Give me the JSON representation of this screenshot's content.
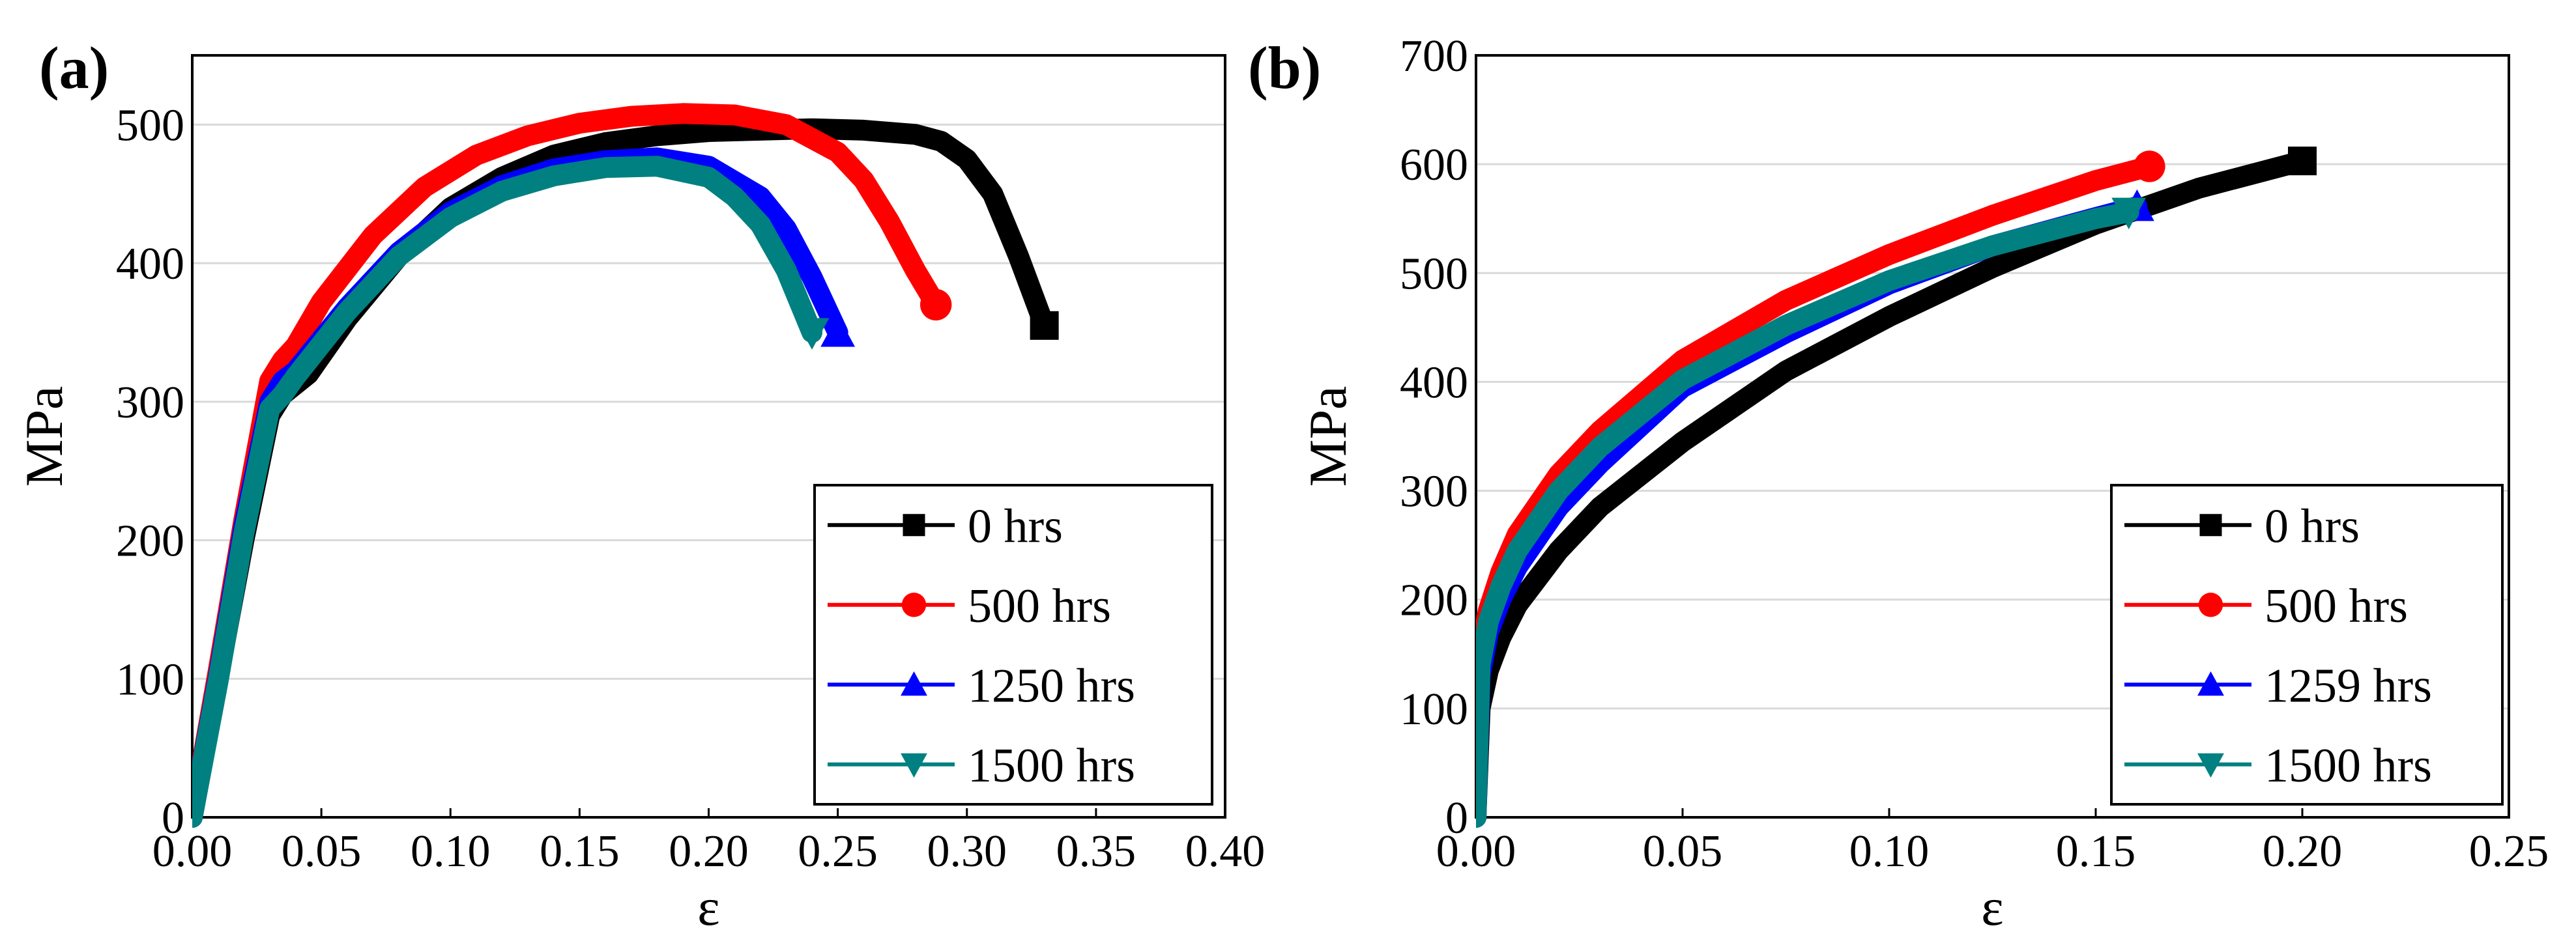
{
  "chart_data": [
    {
      "panel": "(a)",
      "type": "line",
      "xlabel": "ε",
      "ylabel": "MPa",
      "xlim": [
        0.0,
        0.4
      ],
      "ylim": [
        0,
        550
      ],
      "x_ticks": [
        "0.00",
        "0.05",
        "0.10",
        "0.15",
        "0.20",
        "0.25",
        "0.30",
        "0.35",
        "0.40"
      ],
      "y_ticks": [
        "0",
        "100",
        "200",
        "300",
        "400",
        "500"
      ],
      "grid": "horizontal",
      "legend_position": "bottom-right",
      "series": [
        {
          "name": "0 hrs",
          "color": "#000000",
          "marker": "square",
          "x": [
            0.0,
            0.01,
            0.02,
            0.03,
            0.035,
            0.045,
            0.06,
            0.08,
            0.1,
            0.12,
            0.14,
            0.16,
            0.18,
            0.2,
            0.22,
            0.24,
            0.26,
            0.28,
            0.29,
            0.3,
            0.31,
            0.32,
            0.33
          ],
          "y": [
            0,
            100,
            200,
            290,
            305,
            320,
            360,
            405,
            440,
            462,
            478,
            487,
            492,
            495,
            496,
            497,
            496,
            493,
            488,
            475,
            450,
            405,
            355
          ]
        },
        {
          "name": "500 hrs",
          "color": "#ff0000",
          "marker": "circle",
          "x": [
            0.0,
            0.01,
            0.02,
            0.03,
            0.035,
            0.04,
            0.05,
            0.07,
            0.09,
            0.11,
            0.13,
            0.15,
            0.17,
            0.19,
            0.21,
            0.23,
            0.25,
            0.26,
            0.27,
            0.28,
            0.288
          ],
          "y": [
            0,
            105,
            215,
            315,
            330,
            340,
            372,
            420,
            455,
            478,
            492,
            501,
            506,
            508,
            507,
            500,
            480,
            460,
            430,
            395,
            370
          ]
        },
        {
          "name": "1250 hrs",
          "color": "#0000ff",
          "marker": "triangle-up",
          "x": [
            0.0,
            0.01,
            0.02,
            0.03,
            0.035,
            0.04,
            0.06,
            0.08,
            0.1,
            0.12,
            0.14,
            0.16,
            0.18,
            0.2,
            0.22,
            0.23,
            0.24,
            0.25
          ],
          "y": [
            0,
            100,
            210,
            300,
            315,
            322,
            368,
            408,
            437,
            456,
            468,
            474,
            476,
            470,
            448,
            425,
            390,
            350
          ]
        },
        {
          "name": "1500 hrs",
          "color": "#008080",
          "marker": "triangle-down",
          "x": [
            0.0,
            0.01,
            0.02,
            0.03,
            0.035,
            0.04,
            0.06,
            0.08,
            0.1,
            0.12,
            0.14,
            0.16,
            0.18,
            0.2,
            0.21,
            0.22,
            0.23,
            0.24
          ],
          "y": [
            0,
            98,
            205,
            295,
            305,
            318,
            365,
            405,
            433,
            452,
            463,
            469,
            470,
            462,
            448,
            428,
            395,
            350
          ]
        }
      ]
    },
    {
      "panel": "(b)",
      "type": "line",
      "xlabel": "ε",
      "ylabel": "MPa",
      "xlim": [
        0.0,
        0.25
      ],
      "ylim": [
        0,
        700
      ],
      "x_ticks": [
        "0.00",
        "0.05",
        "0.10",
        "0.15",
        "0.20",
        "0.25"
      ],
      "y_ticks": [
        "0",
        "100",
        "200",
        "300",
        "400",
        "500",
        "600",
        "700"
      ],
      "grid": "horizontal",
      "legend_position": "bottom-right",
      "series": [
        {
          "name": "0 hrs",
          "color": "#000000",
          "marker": "square",
          "x": [
            0.0,
            0.001,
            0.003,
            0.006,
            0.01,
            0.02,
            0.03,
            0.05,
            0.075,
            0.1,
            0.125,
            0.15,
            0.175,
            0.2
          ],
          "y": [
            0,
            100,
            135,
            165,
            195,
            245,
            285,
            345,
            410,
            460,
            505,
            545,
            578,
            603
          ]
        },
        {
          "name": "500 hrs",
          "color": "#ff0000",
          "marker": "circle",
          "x": [
            0.0,
            0.001,
            0.003,
            0.006,
            0.01,
            0.02,
            0.03,
            0.05,
            0.075,
            0.1,
            0.125,
            0.15,
            0.163
          ],
          "y": [
            0,
            150,
            190,
            225,
            260,
            315,
            355,
            420,
            475,
            517,
            553,
            585,
            598
          ]
        },
        {
          "name": "1259 hrs",
          "color": "#0000ff",
          "marker": "triangle-up",
          "x": [
            0.0,
            0.001,
            0.003,
            0.006,
            0.01,
            0.02,
            0.03,
            0.05,
            0.075,
            0.1,
            0.125,
            0.15,
            0.16
          ],
          "y": [
            0,
            130,
            170,
            200,
            230,
            285,
            325,
            395,
            445,
            490,
            525,
            551,
            561
          ]
        },
        {
          "name": "1500 hrs",
          "color": "#008080",
          "marker": "triangle-down",
          "x": [
            0.0,
            0.001,
            0.003,
            0.006,
            0.01,
            0.02,
            0.03,
            0.05,
            0.075,
            0.1,
            0.125,
            0.15,
            0.158
          ],
          "y": [
            0,
            140,
            180,
            212,
            245,
            300,
            340,
            402,
            452,
            493,
            525,
            550,
            556
          ]
        }
      ]
    }
  ]
}
